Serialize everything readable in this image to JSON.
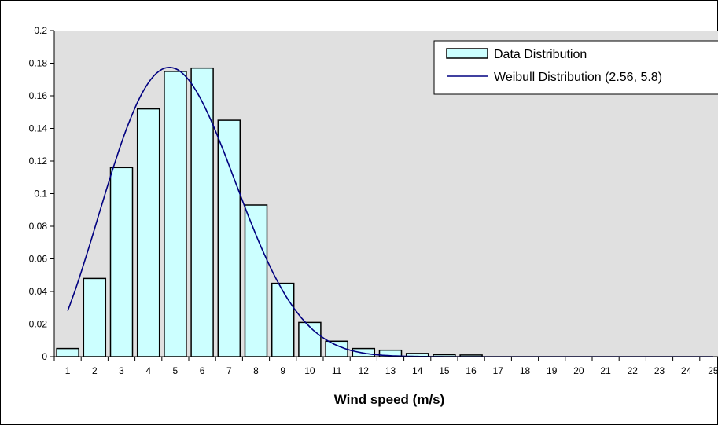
{
  "chart_data": {
    "type": "bar",
    "xlabel": "Wind speed (m/s)",
    "ylabel": "",
    "ylim": [
      0,
      0.2
    ],
    "yticks": [
      "0",
      "0.02",
      "0.04",
      "0.06",
      "0.08",
      "0.1",
      "0.12",
      "0.14",
      "0.16",
      "0.18",
      "0.2"
    ],
    "categories": [
      "1",
      "2",
      "3",
      "4",
      "5",
      "6",
      "7",
      "8",
      "9",
      "10",
      "11",
      "12",
      "13",
      "14",
      "15",
      "16",
      "17",
      "18",
      "19",
      "20",
      "21",
      "22",
      "23",
      "24",
      "25"
    ],
    "grid": false,
    "legend_position": "top-right",
    "series": [
      {
        "name": "Data Distribution",
        "kind": "bar",
        "color": "#ccffff",
        "values": [
          0.005,
          0.048,
          0.116,
          0.152,
          0.175,
          0.177,
          0.145,
          0.093,
          0.045,
          0.021,
          0.0095,
          0.005,
          0.004,
          0.002,
          0.0012,
          0.001,
          0,
          0,
          0,
          0,
          0,
          0,
          0,
          0,
          0
        ]
      },
      {
        "name": "Weibull Distribution (2.56, 5.8)",
        "kind": "line",
        "color": "#000080",
        "shape": 2.56,
        "scale": 5.8
      }
    ],
    "plot_background": "#e0e0e0"
  }
}
